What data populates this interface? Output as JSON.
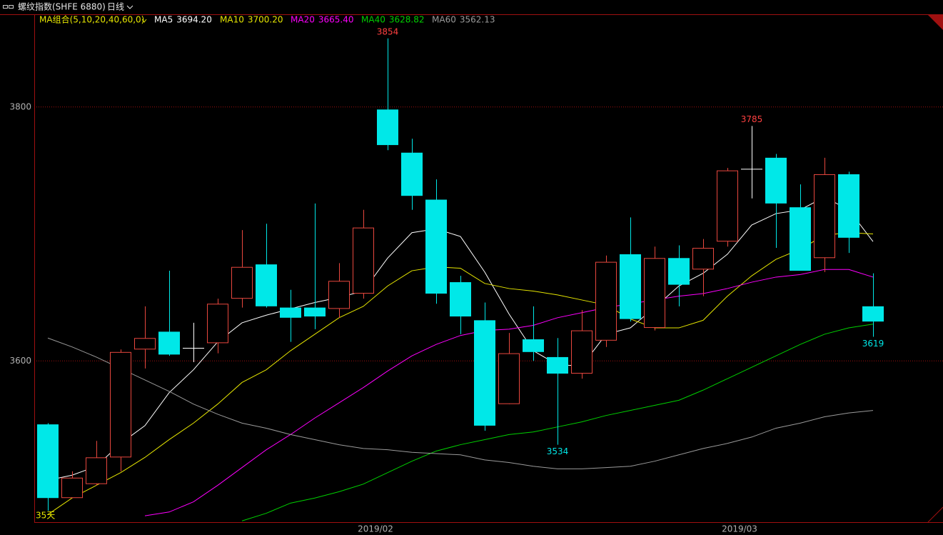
{
  "title": "螺纹指数(SHFE 6880)",
  "period": "日线",
  "chart_data": {
    "type": "candlestick",
    "ma_group_label": "MA组合(5,10,20,40,60,0)",
    "categories": [
      null,
      null,
      null,
      null,
      null,
      null,
      null,
      null,
      null,
      null,
      null,
      null,
      null,
      null,
      "2019/02",
      null,
      null,
      null,
      null,
      null,
      null,
      null,
      null,
      null,
      null,
      null,
      null,
      null,
      null,
      "2019/03",
      null,
      null,
      null,
      null,
      null
    ],
    "open": [
      3550,
      3492,
      3503,
      3524,
      3609,
      3623,
      3610,
      3614,
      3649,
      3676,
      3642,
      3642,
      3641,
      3653,
      3798,
      3764,
      3727,
      3662,
      3632,
      3566,
      3617,
      3603,
      3590,
      3616,
      3684,
      3626,
      3681,
      3672,
      3694,
      3751,
      3760,
      3721,
      3681,
      3747,
      3643
    ],
    "high": [
      3551,
      3513,
      3537,
      3609,
      3643,
      3671,
      3630,
      3649,
      3703,
      3708,
      3656,
      3724,
      3677,
      3719,
      3854,
      3775,
      3743,
      3667,
      3646,
      3622,
      3643,
      3618,
      3640,
      3683,
      3713,
      3690,
      3691,
      3696,
      3752,
      3785,
      3763,
      3739,
      3760,
      3749,
      3669
    ],
    "low": [
      3482,
      3492,
      3502,
      3513,
      3594,
      3604,
      3599,
      3606,
      3642,
      3642,
      3615,
      3625,
      3634,
      3649,
      3766,
      3719,
      3645,
      3621,
      3545,
      3566,
      3600,
      3534,
      3586,
      3611,
      3631,
      3624,
      3643,
      3651,
      3690,
      3728,
      3689,
      3671,
      3670,
      3685,
      3619
    ],
    "close": [
      3492,
      3508,
      3524,
      3607,
      3618,
      3605,
      3610,
      3645,
      3674,
      3643,
      3634,
      3635,
      3663,
      3705,
      3770,
      3730,
      3653,
      3635,
      3549,
      3606,
      3607,
      3590,
      3624,
      3678,
      3633,
      3681,
      3660,
      3689,
      3750,
      3751,
      3724,
      3671,
      3747,
      3697,
      3631
    ],
    "up_color": "#e8473e",
    "down_color": "#00e8e8",
    "doji_color": "#ffffff",
    "series": [
      {
        "name": "MA5",
        "color": "#ffffff",
        "legend_value": {
          "value": 3694.2,
          "label": "3694.20"
        },
        "values": [
          3506,
          3510,
          3517,
          3535,
          3549,
          3575,
          3593,
          3615,
          3630,
          3636,
          3641,
          3646,
          3650,
          3655,
          3681,
          3701,
          3704,
          3698,
          3670,
          3637,
          3608,
          3597,
          3596,
          3621,
          3626,
          3642,
          3659,
          3669,
          3684,
          3707,
          3716,
          3719,
          3729,
          3719,
          3694
        ]
      },
      {
        "name": "MA10",
        "color": "#e6e600",
        "legend_value": {
          "value": 3700.2,
          "label": "3700.20"
        },
        "values": [
          3479,
          3492,
          3502,
          3512,
          3524,
          3538,
          3551,
          3566,
          3583,
          3593,
          3608,
          3621,
          3634,
          3643,
          3659,
          3671,
          3674,
          3673,
          3661,
          3657,
          3655,
          3652,
          3648,
          3644,
          3633,
          3626,
          3626,
          3632,
          3651,
          3667,
          3680,
          3688,
          3699,
          3701,
          3700
        ]
      },
      {
        "name": "MA20",
        "color": "#ff00ff",
        "legend_value": {
          "value": 3665.4,
          "label": "3665.40"
        },
        "values": [
          null,
          null,
          null,
          null,
          3478,
          3481,
          3489,
          3502,
          3516,
          3530,
          3542,
          3555,
          3567,
          3579,
          3592,
          3604,
          3613,
          3620,
          3624,
          3625,
          3628,
          3634,
          3638,
          3642,
          3645,
          3648,
          3651,
          3653,
          3657,
          3662,
          3666,
          3668,
          3672,
          3672,
          3666
        ]
      },
      {
        "name": "MA40",
        "color": "#00d000",
        "legend_value": {
          "value": 3628.82,
          "label": "3628.82"
        },
        "values": [
          null,
          null,
          null,
          null,
          null,
          null,
          null,
          null,
          3474,
          3480,
          3488,
          3492,
          3497,
          3503,
          3512,
          3521,
          3529,
          3534,
          3538,
          3542,
          3544,
          3548,
          3552,
          3557,
          3561,
          3565,
          3569,
          3577,
          3586,
          3595,
          3604,
          3613,
          3621,
          3626,
          3629
        ]
      },
      {
        "name": "MA60",
        "color": "#9a9a9a",
        "legend_value": {
          "value": 3562.13,
          "label": "3562.13"
        },
        "values": [
          3618,
          3611,
          3603,
          3594,
          3585,
          3576,
          3566,
          3558,
          3551,
          3547,
          3542,
          3538,
          3534,
          3531,
          3530,
          3528,
          3527,
          3526,
          3522,
          3520,
          3517,
          3515,
          3515,
          3516,
          3517,
          3521,
          3526,
          3531,
          3535,
          3540,
          3547,
          3551,
          3556,
          3559,
          3561
        ]
      }
    ],
    "annotations": [
      3854,
      3785,
      3534,
      3619
    ],
    "period_label": "35天",
    "ylim": [
      3473,
      3873
    ],
    "yticks": [
      3600,
      3800
    ],
    "grid": true
  }
}
